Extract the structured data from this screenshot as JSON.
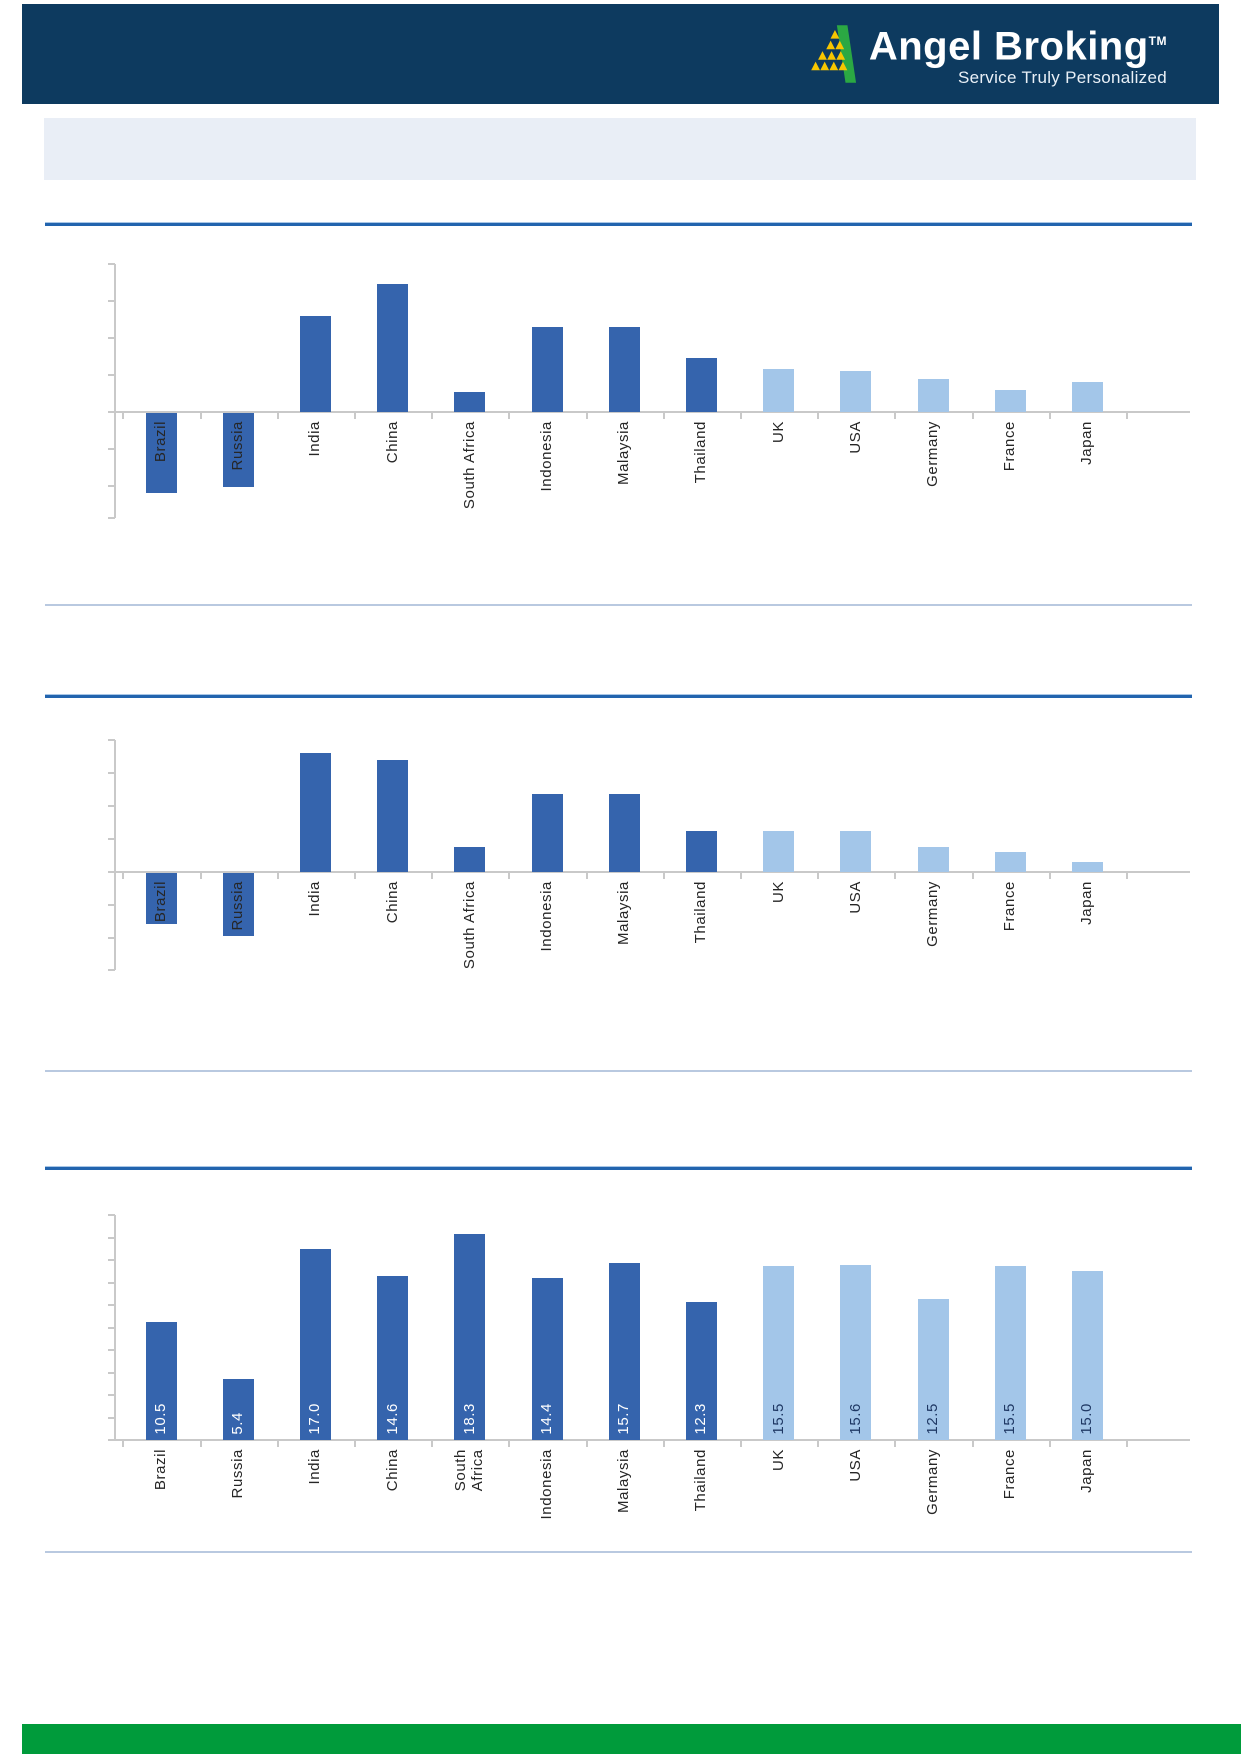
{
  "header": {
    "brand": "Angel Broking",
    "trademark": "TM",
    "tagline": "Service Truly Personalized",
    "bg_color": "#0d3a5f",
    "logo_green": "#2ba843",
    "logo_yellow": "#f7c600"
  },
  "banner": {
    "text": "",
    "bg_color": "#e9eef6"
  },
  "footer": {
    "bg_color": "#009b3b"
  },
  "colors": {
    "dark_bar": "#3564ad",
    "light_bar": "#a3c6e9",
    "dark_series_count": 8,
    "axis": "#c9c9c9",
    "rule_dark": "#2264ae",
    "rule_light": "#a8c6e6",
    "separator": "#b9c9e0",
    "category_label_text": "#262626",
    "value_label_on_dark": "#ffffff",
    "value_label_on_light": "#1f3864"
  },
  "categories": [
    "Brazil",
    "Russia",
    "India",
    "China",
    "South Africa",
    "Indonesia",
    "Malaysia",
    "Thailand",
    "UK",
    "USA",
    "Germany",
    "France",
    "Japan"
  ],
  "chart_data": [
    {
      "type": "bar",
      "title": "",
      "categories": [
        "Brazil",
        "Russia",
        "India",
        "China",
        "South Africa",
        "Indonesia",
        "Malaysia",
        "Thailand",
        "UK",
        "USA",
        "Germany",
        "France",
        "Japan"
      ],
      "values": [
        -4.3,
        -4.0,
        5.2,
        6.9,
        1.1,
        4.6,
        4.6,
        2.9,
        2.3,
        2.2,
        1.8,
        1.2,
        1.6
      ],
      "ylim": [
        -5.7,
        8
      ],
      "ytick_step": 2,
      "ytick_labels_visible": false,
      "grid": false,
      "legend": false,
      "bar_groups": {
        "dark_blue": "Brazil-Thailand",
        "light_blue": "UK-Japan"
      }
    },
    {
      "type": "bar",
      "title": "",
      "categories": [
        "Brazil",
        "Russia",
        "India",
        "China",
        "South Africa",
        "Indonesia",
        "Malaysia",
        "Thailand",
        "UK",
        "USA",
        "Germany",
        "France",
        "Japan"
      ],
      "values": [
        -3.1,
        -3.8,
        7.2,
        6.8,
        1.5,
        4.7,
        4.7,
        2.5,
        2.5,
        2.5,
        1.5,
        1.2,
        0.6
      ],
      "ylim": [
        -5.9,
        8
      ],
      "ytick_step": 2,
      "ytick_labels_visible": false,
      "grid": false,
      "legend": false,
      "bar_groups": {
        "dark_blue": "Brazil-Thailand",
        "light_blue": "UK-Japan"
      }
    },
    {
      "type": "bar",
      "title": "",
      "categories": [
        "Brazil",
        "Russia",
        "India",
        "China",
        "South Africa",
        "Indonesia",
        "Malaysia",
        "Thailand",
        "UK",
        "USA",
        "Germany",
        "France",
        "Japan"
      ],
      "values": [
        10.5,
        5.4,
        17.0,
        14.6,
        18.3,
        14.4,
        15.7,
        12.3,
        15.5,
        15.6,
        12.5,
        15.5,
        15.0
      ],
      "value_labels": [
        "10.5",
        "5.4",
        "17.0",
        "14.6",
        "18.3",
        "14.4",
        "15.7",
        "12.3",
        "15.5",
        "15.6",
        "12.5",
        "15.5",
        "15.0"
      ],
      "two_line_labels": {
        "4": "South\nAfrica"
      },
      "ylim": [
        0,
        20
      ],
      "ytick_step": 2,
      "ytick_labels_visible": false,
      "grid": false,
      "legend": false,
      "bar_groups": {
        "dark_blue": "Brazil-Thailand",
        "light_blue": "UK-Japan"
      }
    }
  ]
}
